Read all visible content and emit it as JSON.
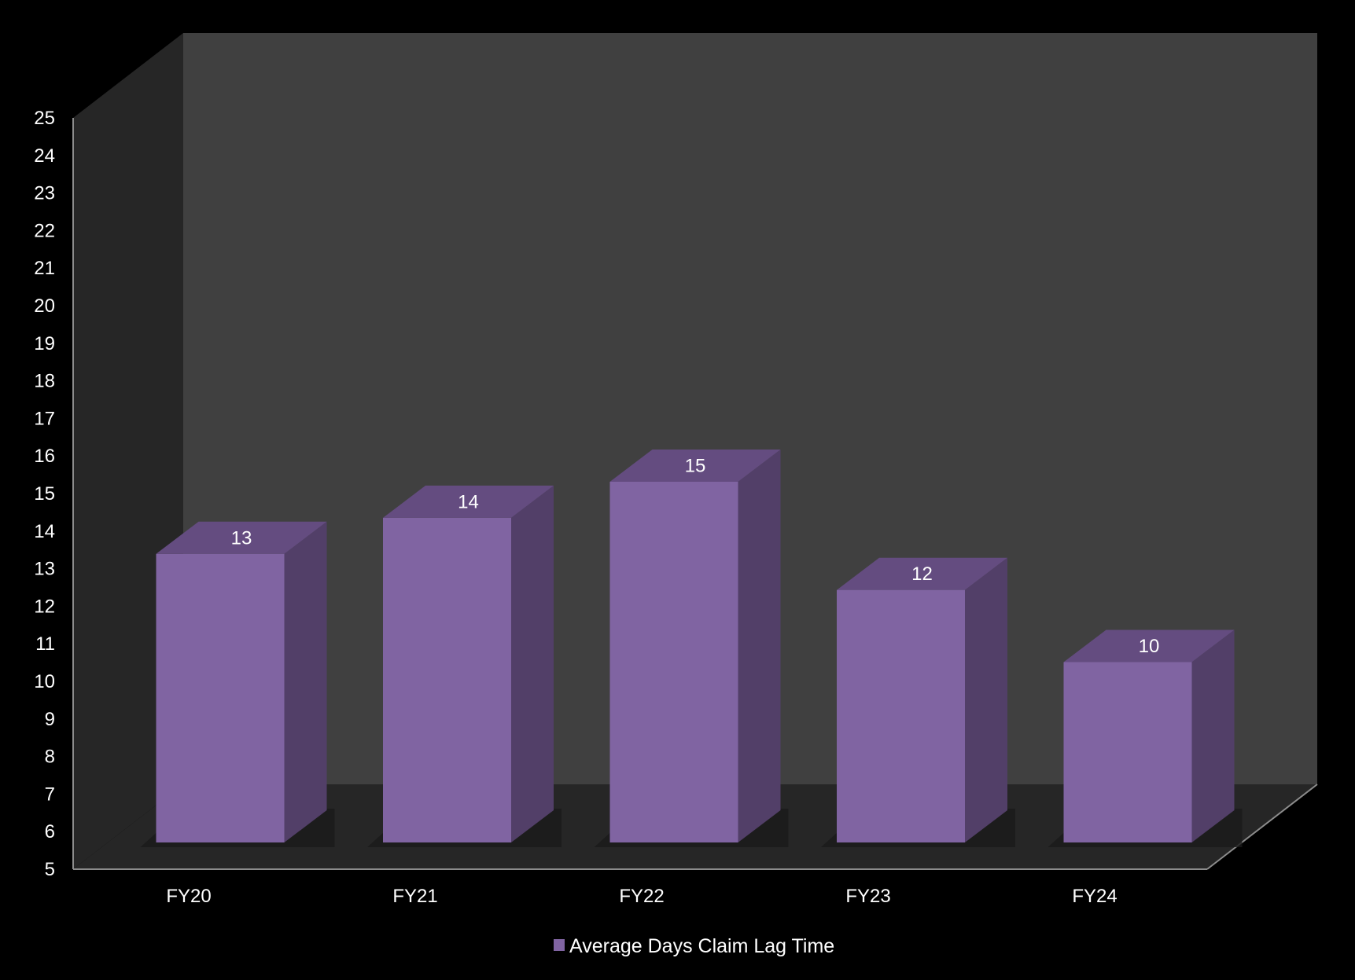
{
  "chart_data": {
    "type": "bar",
    "categories": [
      "FY20",
      "FY21",
      "FY22",
      "FY23",
      "FY24"
    ],
    "series": [
      {
        "name": "Average Days Claim Lag Time",
        "values": [
          13,
          14,
          15,
          12,
          10
        ]
      }
    ],
    "data_labels": [
      "13",
      "14",
      "15",
      "12",
      "10"
    ],
    "ylim": [
      5,
      25
    ],
    "yticks": [
      5,
      6,
      7,
      8,
      9,
      10,
      11,
      12,
      13,
      14,
      15,
      16,
      17,
      18,
      19,
      20,
      21,
      22,
      23,
      24,
      25
    ],
    "legend_position": "bottom",
    "grid": false,
    "three_d": true,
    "colors": {
      "bar_front": "#8064a2",
      "bar_top": "#644c80",
      "bar_side": "#523f68",
      "back_wall": "#404040",
      "side_wall": "#262626",
      "floor": "#262626",
      "background": "#000000"
    }
  }
}
